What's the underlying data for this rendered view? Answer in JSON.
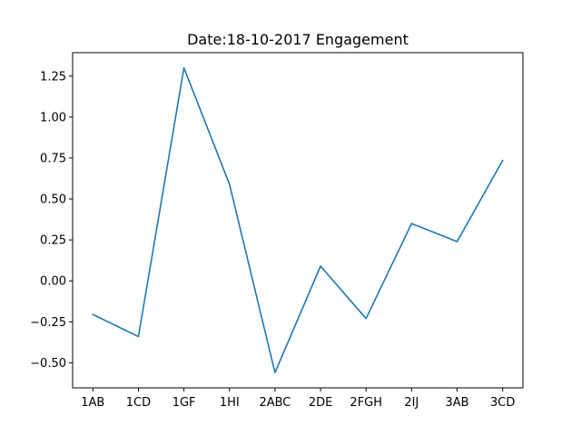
{
  "chart_data": {
    "type": "line",
    "title": "Date:18-10-2017 Engagement",
    "xlabel": "",
    "ylabel": "",
    "categories": [
      "1AB",
      "1CD",
      "1GF",
      "1HI",
      "2ABC",
      "2DE",
      "2FGH",
      "2IJ",
      "3AB",
      "3CD"
    ],
    "series": [
      {
        "values": [
          -0.205,
          -0.34,
          1.3,
          0.59,
          -0.56,
          0.09,
          -0.23,
          0.35,
          0.24,
          0.735
        ],
        "color": "#1f77b4"
      }
    ],
    "yticks": [
      -0.5,
      -0.25,
      0.0,
      0.25,
      0.5,
      0.75,
      1.0,
      1.25
    ],
    "ytick_labels": [
      "−0.50",
      "−0.25",
      "0.00",
      "0.25",
      "0.50",
      "0.75",
      "1.00",
      "1.25"
    ],
    "ylim": [
      -0.653,
      1.393
    ],
    "grid": false,
    "legend": "none"
  }
}
